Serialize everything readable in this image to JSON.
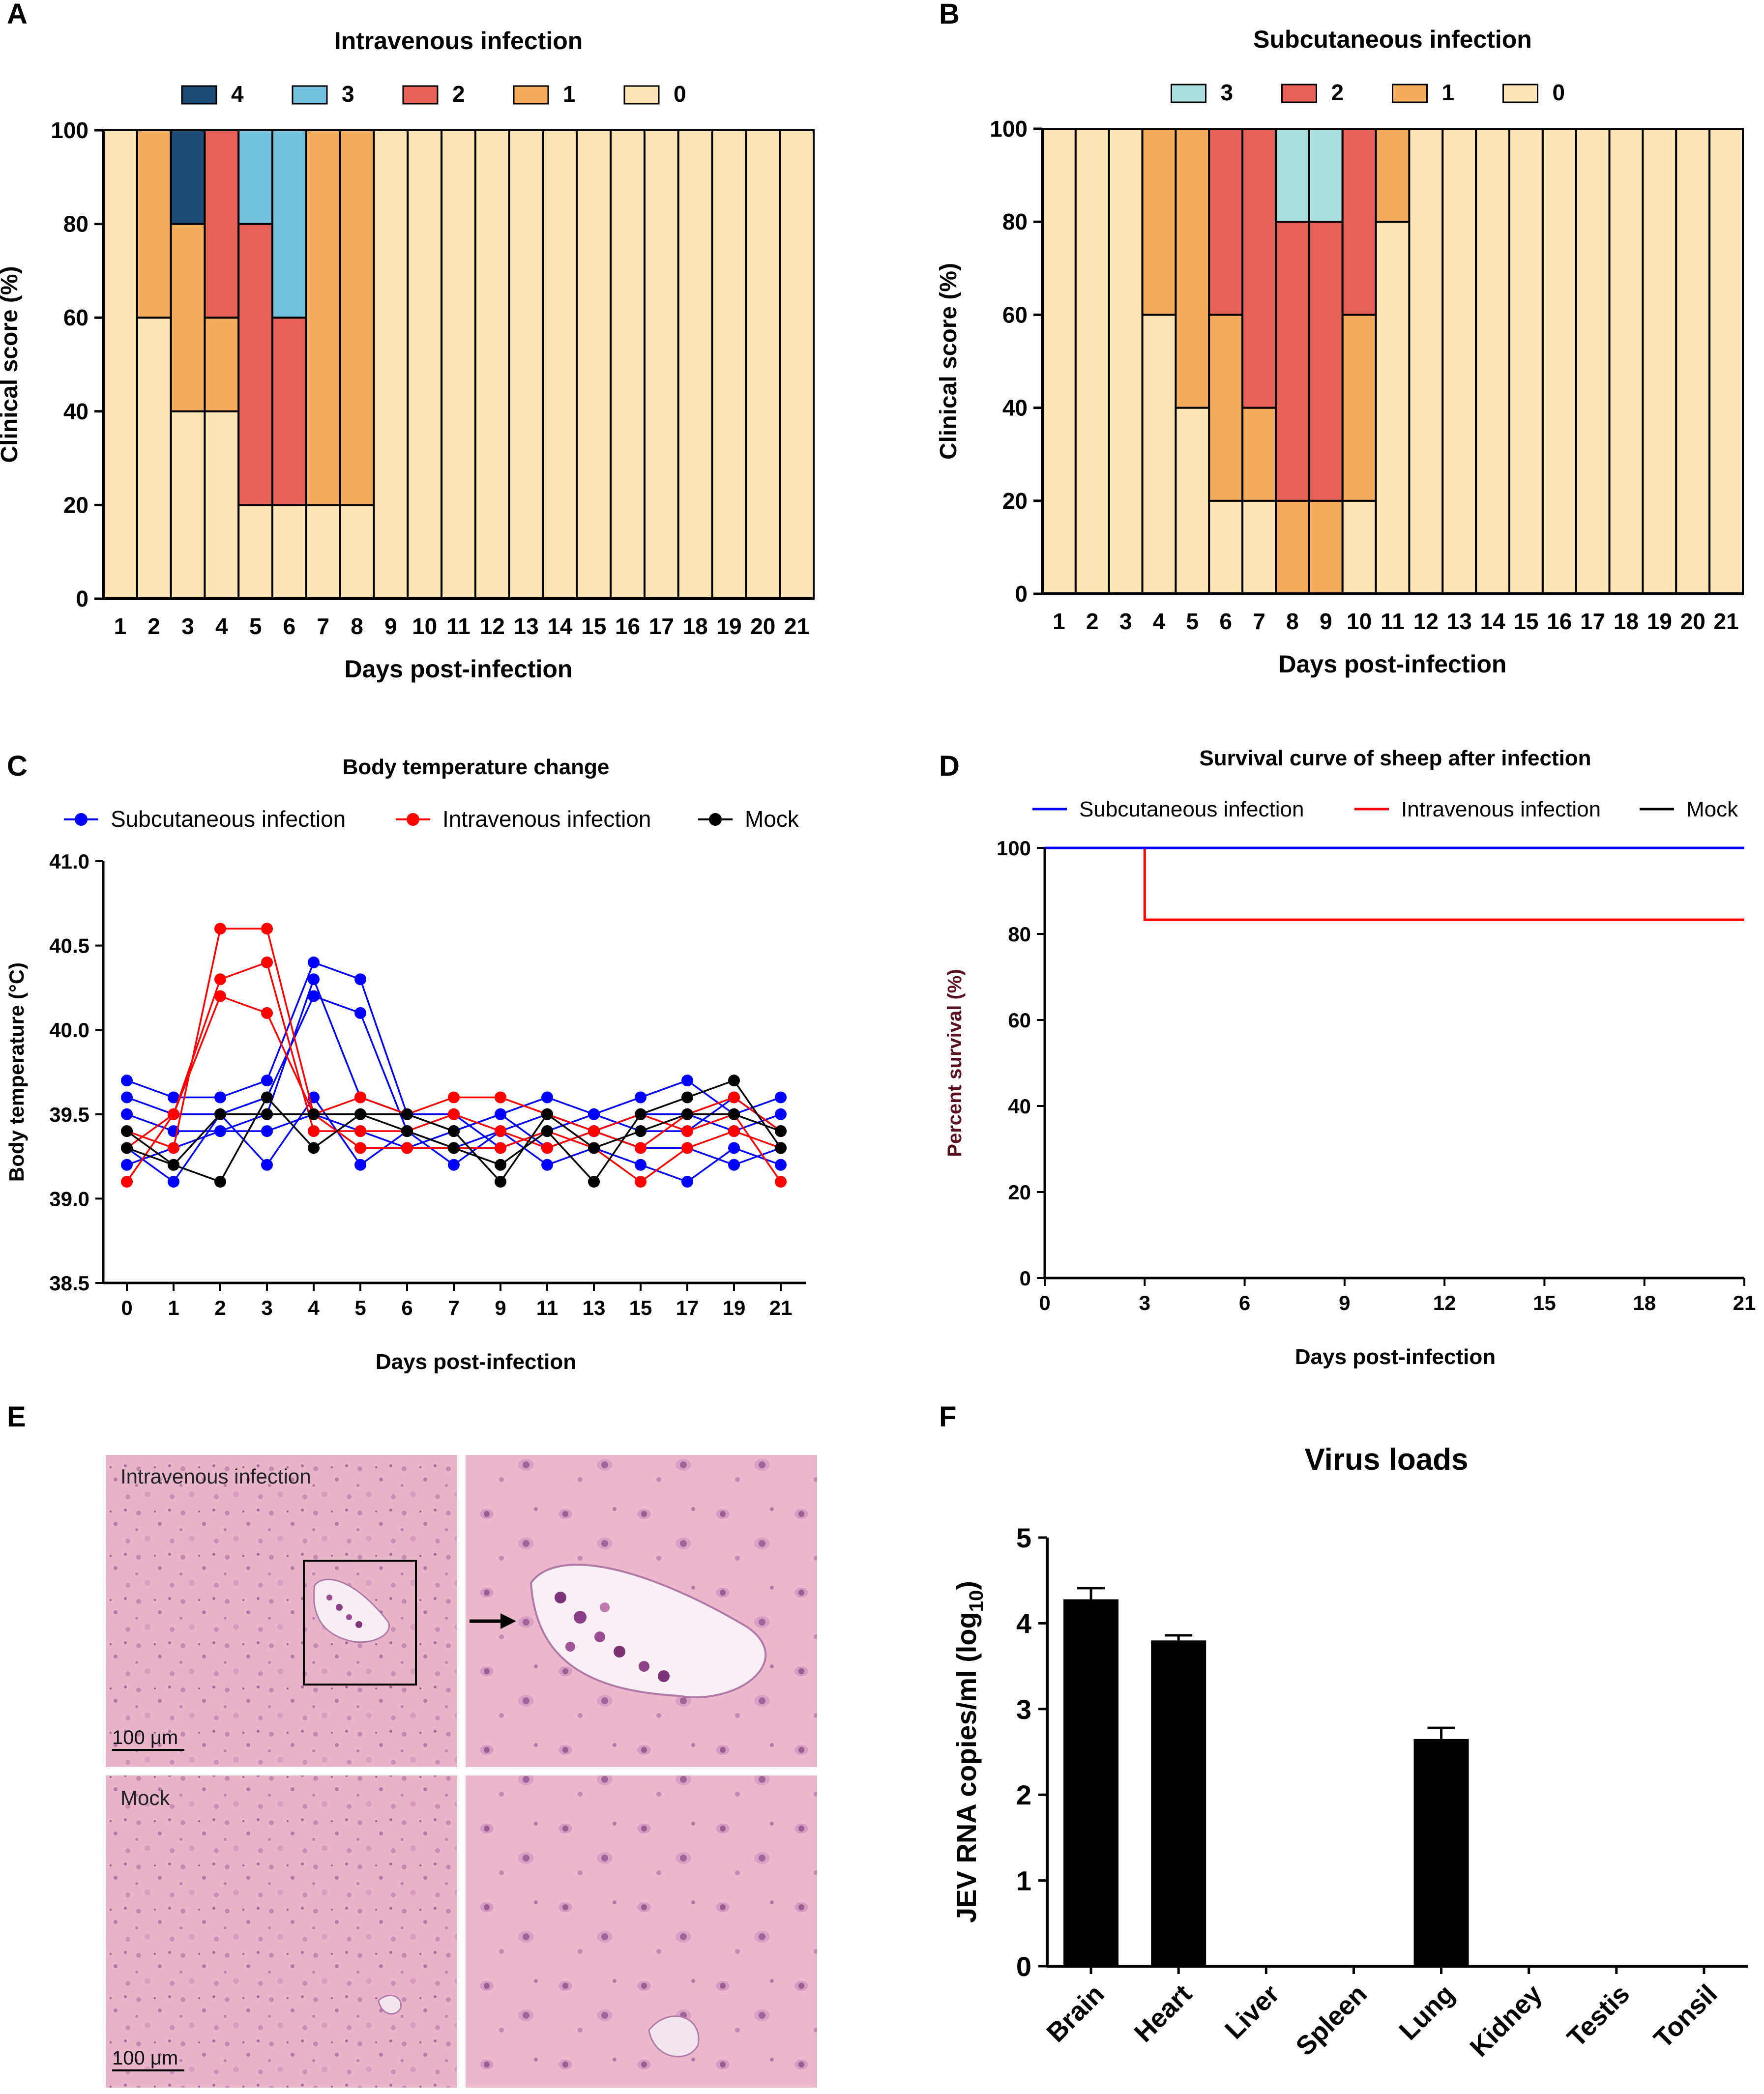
{
  "panel_letters": {
    "A": "A",
    "B": "B",
    "C": "C",
    "D": "D",
    "E": "E",
    "F": "F"
  },
  "micrograph": {
    "label_top": "Intravenous infection",
    "label_bottom": "Mock",
    "scale_bar": "100 μm"
  },
  "chart_data": [
    {
      "id": "A",
      "type": "bar",
      "stacked": true,
      "title": "Intravenous infection",
      "xlabel": "Days post-infection",
      "ylabel": "Clinical score (%)",
      "ylim": [
        0,
        100
      ],
      "yticks": [
        0,
        20,
        40,
        60,
        80,
        100
      ],
      "legend_position": "top",
      "categories": [
        "1",
        "2",
        "3",
        "4",
        "5",
        "6",
        "7",
        "8",
        "9",
        "10",
        "11",
        "12",
        "13",
        "14",
        "15",
        "16",
        "17",
        "18",
        "19",
        "20",
        "21"
      ],
      "series": [
        {
          "name": "0",
          "color": "#FDE5B6",
          "values": [
            100,
            60,
            40,
            40,
            20,
            20,
            20,
            20,
            100,
            100,
            100,
            100,
            100,
            100,
            100,
            100,
            100,
            100,
            100,
            100,
            100
          ]
        },
        {
          "name": "1",
          "color": "#F4AD5D",
          "values": [
            0,
            40,
            40,
            20,
            0,
            0,
            80,
            80,
            0,
            0,
            0,
            0,
            0,
            0,
            0,
            0,
            0,
            0,
            0,
            0,
            0
          ]
        },
        {
          "name": "2",
          "color": "#E8625A",
          "values": [
            0,
            0,
            0,
            40,
            60,
            40,
            0,
            0,
            0,
            0,
            0,
            0,
            0,
            0,
            0,
            0,
            0,
            0,
            0,
            0,
            0
          ]
        },
        {
          "name": "3",
          "color": "#73C1DE",
          "values": [
            0,
            0,
            0,
            0,
            20,
            40,
            0,
            0,
            0,
            0,
            0,
            0,
            0,
            0,
            0,
            0,
            0,
            0,
            0,
            0,
            0
          ]
        },
        {
          "name": "4",
          "color": "#1E4A78",
          "values": [
            0,
            0,
            20,
            0,
            0,
            0,
            0,
            0,
            0,
            0,
            0,
            0,
            0,
            0,
            0,
            0,
            0,
            0,
            0,
            0,
            0
          ]
        }
      ],
      "legend_order": [
        "4",
        "3",
        "2",
        "1",
        "0"
      ]
    },
    {
      "id": "B",
      "type": "bar",
      "stacked": true,
      "title": "Subcutaneous infection",
      "xlabel": "Days post-infection",
      "ylabel": "Clinical score (%)",
      "ylim": [
        0,
        100
      ],
      "yticks": [
        0,
        20,
        40,
        60,
        80,
        100
      ],
      "legend_position": "top",
      "categories": [
        "1",
        "2",
        "3",
        "4",
        "5",
        "6",
        "7",
        "8",
        "9",
        "10",
        "11",
        "12",
        "13",
        "14",
        "15",
        "16",
        "17",
        "18",
        "19",
        "20",
        "21"
      ],
      "series": [
        {
          "name": "0",
          "color": "#FDE5B6",
          "values": [
            100,
            100,
            100,
            60,
            40,
            20,
            20,
            0,
            0,
            20,
            80,
            100,
            100,
            100,
            100,
            100,
            100,
            100,
            100,
            100,
            100
          ]
        },
        {
          "name": "1",
          "color": "#F4AD5D",
          "values": [
            0,
            0,
            0,
            40,
            60,
            40,
            20,
            20,
            20,
            40,
            20,
            0,
            0,
            0,
            0,
            0,
            0,
            0,
            0,
            0,
            0
          ]
        },
        {
          "name": "2",
          "color": "#E8625A",
          "values": [
            0,
            0,
            0,
            0,
            0,
            40,
            60,
            60,
            60,
            40,
            0,
            0,
            0,
            0,
            0,
            0,
            0,
            0,
            0,
            0,
            0
          ]
        },
        {
          "name": "3",
          "color": "#AADDDE",
          "values": [
            0,
            0,
            0,
            0,
            0,
            0,
            0,
            20,
            20,
            0,
            0,
            0,
            0,
            0,
            0,
            0,
            0,
            0,
            0,
            0,
            0
          ]
        }
      ],
      "legend_order": [
        "3",
        "2",
        "1",
        "0"
      ]
    },
    {
      "id": "C",
      "type": "line",
      "title": "Body temperature change",
      "xlabel": "Days post-infection",
      "ylabel": "Body temperature (°C)",
      "ylim": [
        38.5,
        41.0
      ],
      "yticks": [
        "38.5",
        "39.0",
        "39.5",
        "40.0",
        "40.5",
        "41.0"
      ],
      "x": [
        "0",
        "1",
        "2",
        "3",
        "4",
        "5",
        "6",
        "7",
        "9",
        "11",
        "13",
        "15",
        "17",
        "19",
        "21"
      ],
      "legend_position": "top",
      "groups": [
        {
          "name": "Subcutaneous infection",
          "color": "#0000FF",
          "lines": [
            [
              39.7,
              39.6,
              39.6,
              39.7,
              40.4,
              40.3,
              39.5,
              39.4,
              39.5,
              39.6,
              39.5,
              39.6,
              39.7,
              39.5,
              39.6
            ],
            [
              39.6,
              39.5,
              39.5,
              39.6,
              40.2,
              40.1,
              39.4,
              39.3,
              39.4,
              39.5,
              39.4,
              39.5,
              39.5,
              39.4,
              39.5
            ],
            [
              39.5,
              39.4,
              39.4,
              39.5,
              40.3,
              39.6,
              39.5,
              39.5,
              39.3,
              39.4,
              39.5,
              39.4,
              39.4,
              39.6,
              39.4
            ],
            [
              39.3,
              39.1,
              39.5,
              39.2,
              39.6,
              39.2,
              39.4,
              39.2,
              39.4,
              39.2,
              39.3,
              39.2,
              39.1,
              39.3,
              39.2
            ],
            [
              39.2,
              39.3,
              39.4,
              39.4,
              39.5,
              39.4,
              39.3,
              39.4,
              39.5,
              39.3,
              39.4,
              39.3,
              39.3,
              39.2,
              39.3
            ]
          ]
        },
        {
          "name": "Intravenous infection",
          "color": "#FF0000",
          "lines": [
            [
              39.4,
              39.3,
              40.6,
              40.6,
              39.5,
              39.6,
              39.5,
              39.6,
              39.6,
              39.5,
              39.4,
              39.3,
              39.5,
              39.6,
              39.4
            ],
            [
              39.1,
              39.5,
              40.3,
              40.4,
              39.4,
              39.4,
              39.4,
              39.5,
              39.4,
              39.3,
              39.4,
              39.5,
              39.4,
              39.5,
              39.1
            ],
            [
              39.3,
              39.5,
              40.2,
              40.1,
              39.5,
              39.3,
              39.3,
              39.3,
              39.3,
              39.4,
              39.3,
              39.1,
              39.3,
              39.4,
              39.3
            ]
          ]
        },
        {
          "name": "Mock",
          "color": "#000000",
          "lines": [
            [
              39.3,
              39.2,
              39.1,
              39.6,
              39.3,
              39.5,
              39.4,
              39.3,
              39.2,
              39.4,
              39.1,
              39.5,
              39.6,
              39.7,
              39.3
            ],
            [
              39.4,
              39.2,
              39.5,
              39.5,
              39.5,
              39.5,
              39.5,
              39.4,
              39.1,
              39.5,
              39.3,
              39.4,
              39.5,
              39.5,
              39.4
            ]
          ]
        }
      ]
    },
    {
      "id": "D",
      "type": "line",
      "step": true,
      "title": "Survival curve of sheep after infection",
      "xlabel": "Days post-infection",
      "ylabel": "Percent survival (%)",
      "xlim": [
        0,
        21
      ],
      "xticks": [
        0,
        3,
        6,
        9,
        12,
        15,
        18,
        21
      ],
      "ylim": [
        0,
        100
      ],
      "yticks": [
        0,
        20,
        40,
        60,
        80,
        100
      ],
      "legend_position": "top",
      "series": [
        {
          "name": "Subcutaneous infection",
          "color": "#0000FF",
          "points": [
            [
              0,
              100
            ],
            [
              21,
              100
            ]
          ]
        },
        {
          "name": "Intravenous infection",
          "color": "#FF0000",
          "points": [
            [
              0,
              100
            ],
            [
              3,
              100
            ],
            [
              3,
              83.3
            ],
            [
              21,
              83.3
            ]
          ]
        },
        {
          "name": "Mock",
          "color": "#000000",
          "points": [
            [
              0,
              100
            ],
            [
              21,
              100
            ]
          ]
        }
      ]
    },
    {
      "id": "F",
      "type": "bar",
      "title": "Virus loads",
      "xlabel": "",
      "ylabel_main": "JEV RNA copies/ml (log",
      "ylabel_sub": "10",
      "ylabel_tail": ")",
      "ylim": [
        0,
        5
      ],
      "yticks": [
        0,
        1,
        2,
        3,
        4,
        5
      ],
      "categories": [
        "Brain",
        "Heart",
        "Liver",
        "Spleen",
        "Lung",
        "Kidney",
        "Testis",
        "Tonsil"
      ],
      "values": [
        4.28,
        3.8,
        0,
        0,
        2.65,
        0,
        0,
        0
      ],
      "errors": [
        0.13,
        0.06,
        0,
        0,
        0.13,
        0,
        0,
        0
      ],
      "color": "#000000"
    }
  ]
}
